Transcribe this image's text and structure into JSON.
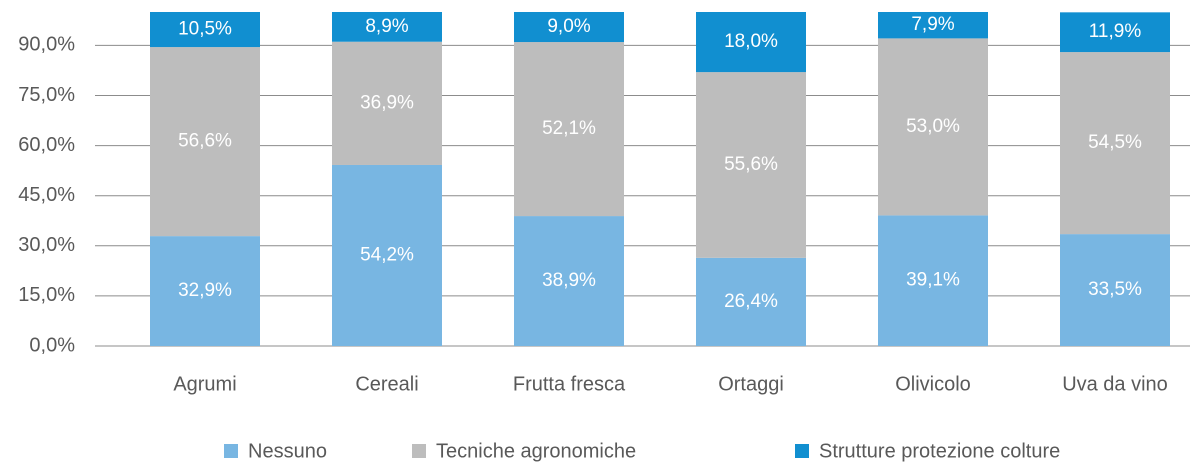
{
  "chart_data": {
    "type": "stacked_bar",
    "categories": [
      "Agrumi",
      "Cereali",
      "Frutta fresca",
      "Ortaggi",
      "Olivicolo",
      "Uva da vino"
    ],
    "series": [
      {
        "name": "Nessuno",
        "color": "#78b6e2",
        "values": [
          32.9,
          54.2,
          38.9,
          26.4,
          39.1,
          33.5
        ],
        "value_labels": [
          "32,9%",
          "54,2%",
          "38,9%",
          "26,4%",
          "39,1%",
          "33,5%"
        ]
      },
      {
        "name": "Tecniche agronomiche",
        "color": "#bdbdbd",
        "values": [
          56.6,
          36.9,
          52.1,
          55.6,
          53.0,
          54.5
        ],
        "value_labels": [
          "56,6%",
          "36,9%",
          "52,1%",
          "55,6%",
          "53,0%",
          "54,5%"
        ]
      },
      {
        "name": "Strutture protezione colture",
        "color": "#118fd0",
        "values": [
          10.5,
          8.9,
          9.0,
          18.0,
          7.9,
          11.9
        ],
        "value_labels": [
          "10,5%",
          "8,9%",
          "9,0%",
          "18,0%",
          "7,9%",
          "11,9%"
        ]
      }
    ],
    "ylim": [
      0,
      100
    ],
    "yticks": [
      {
        "value": 0,
        "label": "0,0%"
      },
      {
        "value": 15,
        "label": "15,0%"
      },
      {
        "value": 30,
        "label": "30,0%"
      },
      {
        "value": 45,
        "label": "45,0%"
      },
      {
        "value": 60,
        "label": "60,0%"
      },
      {
        "value": 75,
        "label": "75,0%"
      },
      {
        "value": 90,
        "label": "90,0%"
      }
    ],
    "grid": true
  }
}
